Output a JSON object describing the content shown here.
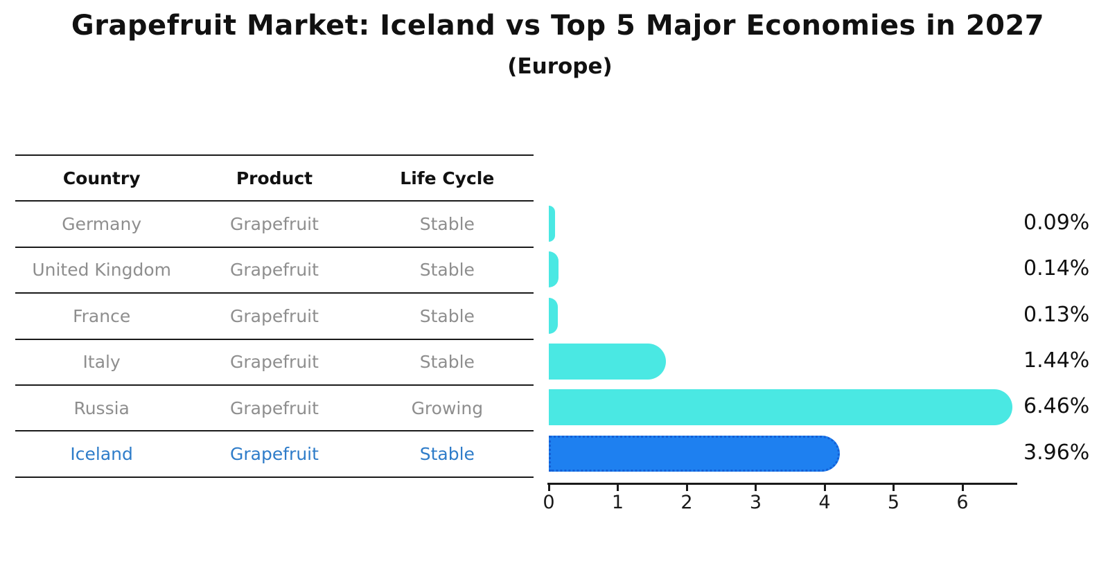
{
  "title": "Grapefruit Market: Iceland vs Top 5 Major Economies in 2027",
  "subtitle": "(Europe)",
  "table": {
    "headers": [
      "Country",
      "Product",
      "Life Cycle"
    ],
    "rows": [
      {
        "country": "Germany",
        "product": "Grapefruit",
        "life_cycle": "Stable",
        "highlighted": false
      },
      {
        "country": "United Kingdom",
        "product": "Grapefruit",
        "life_cycle": "Stable",
        "highlighted": false
      },
      {
        "country": "France",
        "product": "Grapefruit",
        "life_cycle": "Stable",
        "highlighted": false
      },
      {
        "country": "Italy",
        "product": "Grapefruit",
        "life_cycle": "Stable",
        "highlighted": false
      },
      {
        "country": "Russia",
        "product": "Grapefruit",
        "life_cycle": "Growing",
        "highlighted": false
      },
      {
        "country": "Iceland",
        "product": "Grapefruit",
        "life_cycle": "Stable",
        "highlighted": true
      }
    ]
  },
  "chart_data": {
    "type": "bar",
    "orientation": "horizontal",
    "title": "Grapefruit Market: Iceland vs Top 5 Major Economies in 2027",
    "subtitle": "(Europe)",
    "categories": [
      "Germany",
      "United Kingdom",
      "France",
      "Italy",
      "Russia",
      "Iceland"
    ],
    "values": [
      0.09,
      0.14,
      0.13,
      1.44,
      6.46,
      3.96
    ],
    "value_labels": [
      "0.09%",
      "0.14%",
      "0.13%",
      "1.44%",
      "6.46%",
      "3.96%"
    ],
    "xlabel": "",
    "ylabel": "",
    "xlim": [
      0,
      6.8
    ],
    "xticks": [
      0,
      1,
      2,
      3,
      4,
      5,
      6
    ],
    "grid": false,
    "legend": null,
    "highlight_index": 5,
    "colors": {
      "bar": "#4ae8e3",
      "highlight_bar": "#1e80f0",
      "highlight_border": "#135fd6",
      "axis": "#1a1a1a",
      "row_text": "#8e8e8e",
      "highlight_text": "#2e7cc9",
      "label_text": "#111111"
    }
  }
}
